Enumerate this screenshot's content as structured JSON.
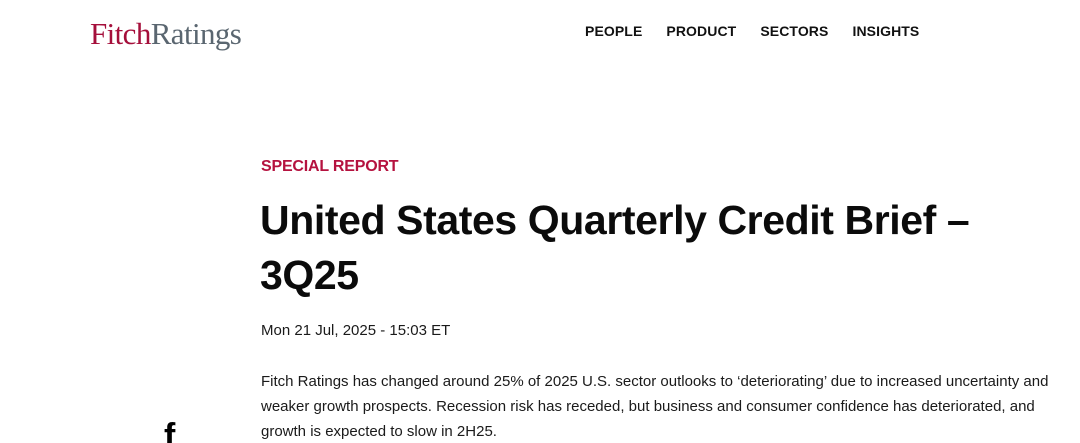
{
  "header": {
    "logo": {
      "part_a": "Fitch",
      "part_b": "Ratings",
      "color_a": "#a50f3b",
      "color_b": "#5a6670"
    },
    "nav": [
      {
        "label": "PEOPLE"
      },
      {
        "label": "PRODUCT"
      },
      {
        "label": "SECTORS"
      },
      {
        "label": "INSIGHTS"
      }
    ]
  },
  "article": {
    "eyebrow": "SPECIAL REPORT",
    "eyebrow_color": "#b5123f",
    "title": "United States Quarterly Credit Brief – 3Q25",
    "date": "Mon 21 Jul, 2025 - 15:03 ET",
    "summary": "Fitch Ratings has changed around 25% of 2025 U.S. sector outlooks to ‘deteriorating’ due to increased uncertainty and weaker growth prospects. Recession risk has receded, but business and consumer confidence has deteriorated, and growth is expected to slow in 2H25."
  },
  "share": {
    "facebook_glyph": "f",
    "icon": "facebook-icon"
  }
}
